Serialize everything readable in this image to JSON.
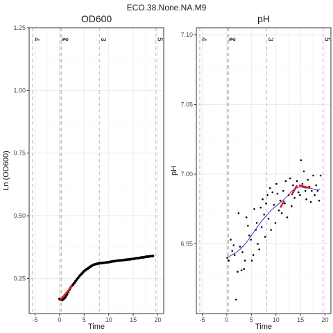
{
  "figure_title": "ECO.38.None.NA.M9",
  "colors": {
    "panel_border": "#333333",
    "grid_major": "#ebebeb",
    "grid_minor": "#f5f5f5",
    "vline": "#bdbdbd",
    "points": "#000000",
    "fit": "#3333cc",
    "highlight": "#e41a1c",
    "axis_text": "#4d4d4d"
  },
  "chart_data": [
    {
      "type": "scatter",
      "title": "OD600",
      "xlabel": "Time",
      "ylabel": "Ln (OD600)",
      "xlim": [
        -6.2,
        21.2
      ],
      "ylim": [
        0.11,
        1.25
      ],
      "x_ticks": [
        -5,
        0,
        5,
        10,
        15,
        20
      ],
      "x_tick_labels": [
        "-5",
        "0",
        "5",
        "10",
        "15",
        "20"
      ],
      "y_ticks": [
        0.25,
        0.5,
        0.75,
        1.0,
        1.25
      ],
      "y_tick_labels": [
        "0.25",
        "0.50",
        "0.75",
        "1.00",
        "1.25"
      ],
      "grid": true,
      "vlines": [
        {
          "x": -5.5,
          "label": "4"
        },
        {
          "x": 0.1,
          "label": "1"
        },
        {
          "x": 0.35,
          "label": "2"
        },
        {
          "x": 8.1,
          "label": "3"
        },
        {
          "x": 19.6,
          "label": "5"
        }
      ],
      "points": {
        "x": [
          0,
          0.25,
          0.5,
          0.75,
          1.0,
          1.25,
          1.5,
          1.75,
          2.0,
          2.25,
          2.5,
          2.75,
          3.0,
          3.25,
          3.5,
          3.75,
          4.0,
          4.25,
          4.5,
          4.75,
          5.0,
          5.25,
          5.5,
          5.75,
          6.0,
          6.25,
          6.5,
          6.75,
          7.0,
          7.25,
          7.5,
          7.75,
          8.0,
          8.25,
          8.5,
          8.75,
          9.0,
          9.25,
          9.5,
          9.75,
          10.0,
          10.25,
          10.5,
          10.75,
          11.0,
          11.25,
          11.5,
          11.75,
          12.0,
          12.25,
          12.5,
          12.75,
          13.0,
          13.25,
          13.5,
          13.75,
          14.0,
          14.25,
          14.5,
          14.75,
          15.0,
          15.25,
          15.5,
          15.75,
          16.0,
          16.25,
          16.5,
          16.75,
          17.0,
          17.25,
          17.5,
          17.75,
          18.0,
          18.25,
          18.5,
          18.75,
          19.0
        ],
        "y": [
          0.168,
          0.166,
          0.164,
          0.167,
          0.172,
          0.178,
          0.186,
          0.196,
          0.206,
          0.214,
          0.22,
          0.226,
          0.232,
          0.239,
          0.246,
          0.252,
          0.258,
          0.264,
          0.269,
          0.274,
          0.279,
          0.283,
          0.287,
          0.29,
          0.293,
          0.297,
          0.3,
          0.303,
          0.305,
          0.307,
          0.308,
          0.309,
          0.31,
          0.311,
          0.311,
          0.312,
          0.312,
          0.313,
          0.314,
          0.314,
          0.315,
          0.316,
          0.317,
          0.318,
          0.319,
          0.319,
          0.32,
          0.321,
          0.321,
          0.322,
          0.322,
          0.323,
          0.323,
          0.324,
          0.325,
          0.325,
          0.326,
          0.326,
          0.327,
          0.328,
          0.328,
          0.329,
          0.33,
          0.331,
          0.331,
          0.332,
          0.333,
          0.334,
          0.334,
          0.335,
          0.336,
          0.337,
          0.337,
          0.338,
          0.339,
          0.339,
          0.34
        ]
      },
      "highlight": {
        "x": [
          0.2,
          2.6
        ],
        "y": [
          0.165,
          0.222
        ]
      }
    },
    {
      "type": "scatter",
      "title": "pH",
      "xlabel": "Time",
      "ylabel": "pH",
      "xlim": [
        -6.2,
        21.2
      ],
      "ylim": [
        6.9,
        7.105
      ],
      "x_ticks": [
        -5,
        0,
        5,
        10,
        15,
        20
      ],
      "x_tick_labels": [
        "-5",
        "0",
        "5",
        "10",
        "15",
        "20"
      ],
      "y_ticks": [
        6.95,
        7.0,
        7.05,
        7.1
      ],
      "y_tick_labels": [
        "6.95",
        "7.00",
        "7.05",
        "7.10"
      ],
      "grid": true,
      "vlines": [
        {
          "x": -5.5,
          "label": "4"
        },
        {
          "x": 0.1,
          "label": "1"
        },
        {
          "x": 0.35,
          "label": "2"
        },
        {
          "x": 8.1,
          "label": "3"
        },
        {
          "x": 19.6,
          "label": "5"
        }
      ],
      "points": {
        "x": [
          0.1,
          0.4,
          0.8,
          1.1,
          1.4,
          1.6,
          1.9,
          2.2,
          2.4,
          2.7,
          3.0,
          3.2,
          3.5,
          3.7,
          4.0,
          4.3,
          4.6,
          4.9,
          5.1,
          5.4,
          5.6,
          5.9,
          6.1,
          6.3,
          6.6,
          6.9,
          7.1,
          7.3,
          7.6,
          7.8,
          8.0,
          8.3,
          8.5,
          8.8,
          9.0,
          9.3,
          9.6,
          9.9,
          10.1,
          10.3,
          10.6,
          10.9,
          11.2,
          11.5,
          11.8,
          12.0,
          12.3,
          12.6,
          12.9,
          13.2,
          13.5,
          13.8,
          14.0,
          14.3,
          14.6,
          14.9,
          15.1,
          15.4,
          15.7,
          16.0,
          16.2,
          16.5,
          16.8,
          17.1,
          17.3,
          17.6,
          17.9,
          18.2,
          18.5,
          18.8,
          19.1
        ],
        "y": [
          6.94,
          6.938,
          6.953,
          6.945,
          6.949,
          6.942,
          6.91,
          6.93,
          6.972,
          6.948,
          6.931,
          6.944,
          6.932,
          6.938,
          6.969,
          6.963,
          6.956,
          6.953,
          6.938,
          6.942,
          6.975,
          6.96,
          6.965,
          6.95,
          6.946,
          6.976,
          6.962,
          6.982,
          6.971,
          6.955,
          6.979,
          6.985,
          6.968,
          6.99,
          6.96,
          6.987,
          6.978,
          6.965,
          6.993,
          6.986,
          6.974,
          6.981,
          6.972,
          6.988,
          6.979,
          6.995,
          6.969,
          6.985,
          6.997,
          6.977,
          6.992,
          6.983,
          6.99,
          6.995,
          6.987,
          6.985,
          7.01,
          6.993,
          7.002,
          6.988,
          6.982,
          6.996,
          6.991,
          6.98,
          6.988,
          6.999,
          6.985,
          6.992,
          6.988,
          6.981,
          6.999
        ]
      },
      "fit": {
        "x": [
          0,
          1,
          2,
          3,
          4,
          5,
          6,
          7,
          8,
          9,
          10,
          11,
          12,
          13,
          14,
          15,
          16,
          17,
          18,
          19
        ],
        "y": [
          6.94,
          6.942,
          6.944,
          6.947,
          6.951,
          6.956,
          6.961,
          6.966,
          6.97,
          6.974,
          6.977,
          6.98,
          6.983,
          6.987,
          6.99,
          6.991,
          6.99,
          6.99,
          6.989,
          6.989
        ]
      },
      "highlight_segments": [
        {
          "x": [
            10.9,
            11.7
          ],
          "y": [
            6.976,
            6.981
          ]
        },
        {
          "x": [
            13.2,
            14.3
          ],
          "y": [
            6.985,
            6.992
          ]
        },
        {
          "x": [
            14.7,
            17.0
          ],
          "y": [
            6.992,
            6.99
          ]
        }
      ]
    }
  ]
}
